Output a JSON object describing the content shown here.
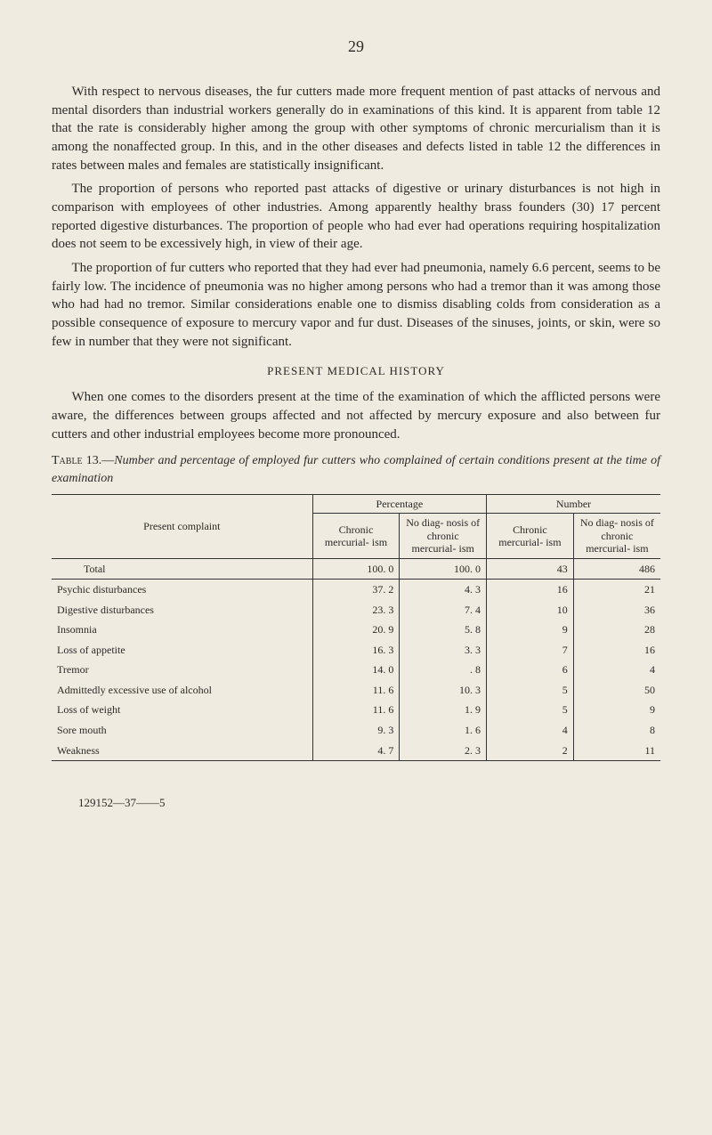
{
  "page_number": "29",
  "paragraphs": {
    "p1": "With respect to nervous diseases, the fur cutters made more frequent mention of past attacks of nervous and mental disorders than industrial workers generally do in examinations of this kind. It is apparent from table 12 that the rate is considerably higher among the group with other symptoms of chronic mercurialism than it is among the nonaffected group. In this, and in the other diseases and defects listed in table 12 the differences in rates between males and females are statistically insignificant.",
    "p2": "The proportion of persons who reported past attacks of digestive or urinary disturbances is not high in comparison with employees of other industries. Among apparently healthy brass founders (30) 17 percent reported digestive disturbances. The proportion of people who had ever had operations requiring hospitalization does not seem to be excessively high, in view of their age.",
    "p3": "The proportion of fur cutters who reported that they had ever had pneumonia, namely 6.6 percent, seems to be fairly low. The incidence of pneumonia was no higher among persons who had a tremor than it was among those who had had no tremor. Similar considerations enable one to dismiss disabling colds from consideration as a possible consequence of exposure to mercury vapor and fur dust. Diseases of the sinuses, joints, or skin, were so few in number that they were not significant.",
    "p4": "When one comes to the disorders present at the time of the examination of which the afflicted persons were aware, the differences between groups affected and not affected by mercury exposure and also between fur cutters and other industrial employees become more pronounced."
  },
  "section_head": "PRESENT MEDICAL HISTORY",
  "table": {
    "caption_lead": "Table 13.—",
    "caption_body": "Number and percentage of employed fur cutters who complained of certain conditions present at the time of examination",
    "group_headers": [
      "Percentage",
      "Number"
    ],
    "stub_header": "Present complaint",
    "col_headers": [
      "Chronic mercurial- ism",
      "No diag- nosis of chronic mercurial- ism",
      "Chronic mercurial- ism",
      "No diag- nosis of chronic mercurial- ism"
    ],
    "total_row": {
      "label": "Total",
      "values": [
        "100. 0",
        "100. 0",
        "43",
        "486"
      ]
    },
    "rows": [
      {
        "label": "Psychic disturbances",
        "values": [
          "37. 2",
          "4. 3",
          "16",
          "21"
        ]
      },
      {
        "label": "Digestive disturbances",
        "values": [
          "23. 3",
          "7. 4",
          "10",
          "36"
        ]
      },
      {
        "label": "Insomnia",
        "values": [
          "20. 9",
          "5. 8",
          "9",
          "28"
        ]
      },
      {
        "label": "Loss of appetite",
        "values": [
          "16. 3",
          "3. 3",
          "7",
          "16"
        ]
      },
      {
        "label": "Tremor",
        "values": [
          "14. 0",
          ". 8",
          "6",
          "4"
        ]
      },
      {
        "label": "Admittedly excessive use of alcohol",
        "values": [
          "11. 6",
          "10. 3",
          "5",
          "50"
        ]
      },
      {
        "label": "Loss of weight",
        "values": [
          "11. 6",
          "1. 9",
          "5",
          "9"
        ]
      },
      {
        "label": "Sore mouth",
        "values": [
          "9. 3",
          "1. 6",
          "4",
          "8"
        ]
      },
      {
        "label": "Weakness",
        "values": [
          "4. 7",
          "2. 3",
          "2",
          "11"
        ]
      }
    ]
  },
  "footer": "129152—37——5",
  "colors": {
    "background": "#f0ebe0",
    "text": "#2a2a28",
    "rule": "#333333"
  }
}
